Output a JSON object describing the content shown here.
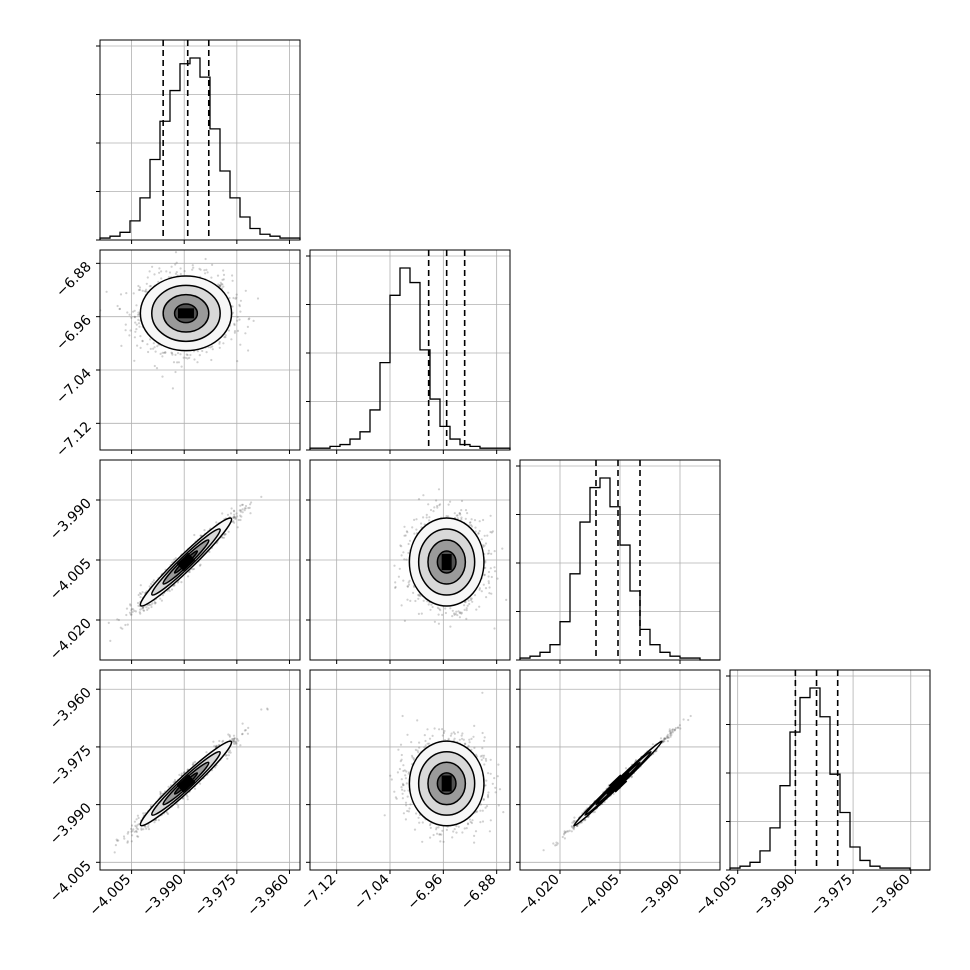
{
  "chart_data": {
    "type": "corner",
    "grid": true,
    "parameters": [
      {
        "index": 0,
        "range": [
          -4.014,
          -3.957
        ],
        "ticks": [
          -4.005,
          -3.99,
          -3.975,
          -3.96
        ],
        "tick_labels": [
          "−4.005",
          "−3.990",
          "−3.975",
          "−3.960"
        ],
        "hist_tick_count": 5,
        "mean": -3.9895,
        "sigma": 0.0065,
        "quantiles": [
          -3.996,
          -3.989,
          -3.983
        ],
        "histogram_counts": [
          1,
          2,
          4,
          10,
          22,
          42,
          62,
          78,
          92,
          95,
          85,
          58,
          36,
          22,
          12,
          6,
          3,
          2,
          1,
          1
        ]
      },
      {
        "index": 1,
        "range": [
          -7.16,
          -6.86
        ],
        "ticks": [
          -7.12,
          -7.04,
          -6.96,
          -6.88
        ],
        "tick_labels": [
          "−7.12",
          "−7.04",
          "−6.96",
          "−6.88"
        ],
        "hist_tick_count": 5,
        "mean": -6.955,
        "sigma": 0.028,
        "quantiles": [
          -6.982,
          -6.955,
          -6.928
        ],
        "histogram_counts": [
          1,
          1,
          2,
          3,
          6,
          10,
          22,
          48,
          85,
          100,
          92,
          55,
          28,
          13,
          6,
          3,
          2,
          1,
          1,
          1
        ]
      },
      {
        "index": 2,
        "range": [
          -4.03,
          -3.98
        ],
        "ticks": [
          -4.02,
          -4.005,
          -3.99
        ],
        "tick_labels": [
          "−4.020",
          "−4.005",
          "−3.990"
        ],
        "hist_tick_count": 5,
        "mean": -4.0055,
        "sigma": 0.0055,
        "quantiles": [
          -4.011,
          -4.0055,
          -4.0
        ],
        "histogram_counts": [
          1,
          2,
          4,
          8,
          20,
          45,
          72,
          90,
          95,
          80,
          60,
          36,
          16,
          8,
          4,
          2,
          1,
          1,
          0,
          0
        ]
      },
      {
        "index": 3,
        "range": [
          -4.007,
          -3.955
        ],
        "ticks": [
          -4.005,
          -3.99,
          -3.975,
          -3.96
        ],
        "tick_labels": [
          "−4.005",
          "−3.990",
          "−3.975",
          "−3.960"
        ],
        "hist_tick_count": 5,
        "mean": -3.9845,
        "sigma": 0.0055,
        "quantiles": [
          -3.99,
          -3.9845,
          -3.979
        ],
        "histogram_counts": [
          1,
          2,
          4,
          10,
          22,
          44,
          72,
          90,
          95,
          80,
          50,
          30,
          12,
          5,
          2,
          1,
          1,
          1,
          0,
          0
        ]
      }
    ],
    "correlations": {
      "1-0": 0.0,
      "2-0": 0.97,
      "2-1": 0.0,
      "3-0": 0.97,
      "3-1": 0.0,
      "3-2": 0.995
    },
    "contour_levels_sigma": [
      0.5,
      1.0,
      1.5,
      2.0
    ],
    "samples_per_panel": 1400,
    "colors": {
      "line": "#000000",
      "grid": "#b0b0b0",
      "density": "#000000",
      "points": "#555555"
    }
  }
}
